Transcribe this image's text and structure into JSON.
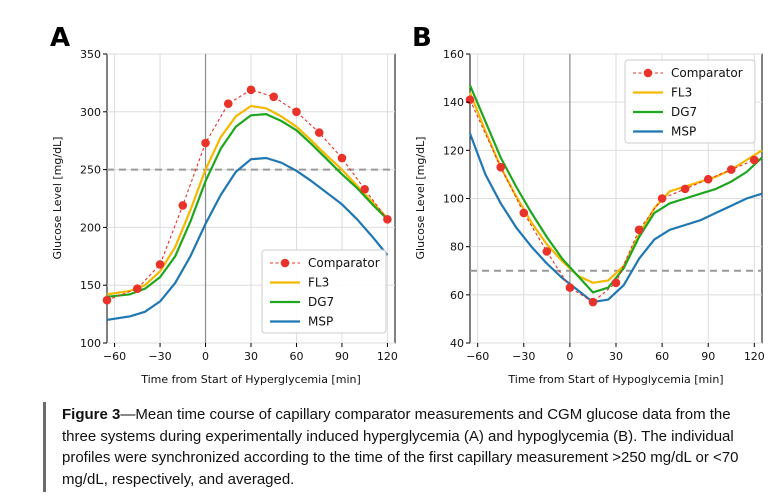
{
  "chart_data": [
    {
      "type": "line",
      "panel": "A",
      "xlabel": "Time from Start of Hyperglycemia [min]",
      "ylabel": "Glucose Level [mg/dL]",
      "xlim": [
        -65,
        125
      ],
      "ylim": [
        100,
        350
      ],
      "xticks": [
        -60,
        -30,
        0,
        30,
        60,
        90,
        120
      ],
      "yticks": [
        100,
        150,
        200,
        250,
        300,
        350
      ],
      "hline": 250,
      "vline": 0,
      "legend_position": "lower-right",
      "series": [
        {
          "name": "Comparator",
          "color": "#e8322a",
          "style": "dashed-dots",
          "x": [
            -65,
            -45,
            -30,
            -15,
            0,
            15,
            30,
            45,
            60,
            75,
            90,
            105,
            120
          ],
          "y": [
            137,
            147,
            168,
            219,
            273,
            307,
            319,
            313,
            300,
            282,
            260,
            233,
            207
          ]
        },
        {
          "name": "FL3",
          "color": "#f5b800",
          "style": "solid",
          "x": [
            -65,
            -50,
            -40,
            -30,
            -20,
            -10,
            0,
            10,
            20,
            30,
            40,
            50,
            60,
            70,
            80,
            90,
            100,
            110,
            120
          ],
          "y": [
            142,
            145,
            150,
            162,
            183,
            215,
            250,
            278,
            296,
            305,
            303,
            296,
            287,
            275,
            262,
            250,
            236,
            222,
            208
          ]
        },
        {
          "name": "DG7",
          "color": "#1fa61f",
          "style": "solid",
          "x": [
            -65,
            -50,
            -40,
            -30,
            -20,
            -10,
            0,
            10,
            20,
            30,
            40,
            50,
            60,
            70,
            80,
            90,
            100,
            110,
            120
          ],
          "y": [
            140,
            142,
            147,
            157,
            175,
            205,
            240,
            268,
            287,
            297,
            298,
            292,
            284,
            272,
            259,
            246,
            234,
            220,
            207
          ]
        },
        {
          "name": "MSP",
          "color": "#1f77b4",
          "style": "solid",
          "x": [
            -65,
            -50,
            -40,
            -30,
            -20,
            -10,
            0,
            10,
            20,
            30,
            40,
            50,
            60,
            70,
            80,
            90,
            100,
            110,
            120
          ],
          "y": [
            120,
            123,
            127,
            136,
            152,
            175,
            203,
            228,
            248,
            259,
            260,
            256,
            249,
            240,
            230,
            220,
            207,
            192,
            176
          ]
        }
      ]
    },
    {
      "type": "line",
      "panel": "B",
      "xlabel": "Time from Start of Hypoglycemia [min]",
      "ylabel": "Glucose Level [mg/dL]",
      "xlim": [
        -65,
        125
      ],
      "ylim": [
        40,
        160
      ],
      "xticks": [
        -60,
        -30,
        0,
        30,
        60,
        90,
        120
      ],
      "yticks": [
        40,
        60,
        80,
        100,
        120,
        140,
        160
      ],
      "hline": 70,
      "vline": 0,
      "legend_position": "top-right",
      "series": [
        {
          "name": "Comparator",
          "color": "#e8322a",
          "style": "dashed-dots",
          "x": [
            -65,
            -45,
            -30,
            -15,
            0,
            15,
            30,
            45,
            60,
            75,
            90,
            105,
            120
          ],
          "y": [
            141,
            113,
            94,
            78,
            63,
            57,
            65,
            87,
            100,
            104,
            108,
            112,
            116
          ]
        },
        {
          "name": "FL3",
          "color": "#f5b800",
          "style": "solid",
          "x": [
            -65,
            -55,
            -45,
            -35,
            -25,
            -15,
            -5,
            5,
            15,
            25,
            35,
            45,
            55,
            65,
            75,
            85,
            95,
            105,
            115,
            125
          ],
          "y": [
            144,
            128,
            113,
            101,
            90,
            81,
            74,
            68,
            65,
            66,
            72,
            85,
            96,
            103,
            105,
            107,
            109,
            112,
            116,
            120
          ]
        },
        {
          "name": "DG7",
          "color": "#1fa61f",
          "style": "solid",
          "x": [
            -65,
            -55,
            -45,
            -35,
            -25,
            -15,
            -5,
            5,
            15,
            25,
            35,
            45,
            55,
            65,
            75,
            85,
            95,
            105,
            115,
            125
          ],
          "y": [
            147,
            132,
            117,
            105,
            94,
            84,
            75,
            68,
            61,
            63,
            71,
            84,
            94,
            98,
            100,
            102,
            104,
            107,
            111,
            117
          ]
        },
        {
          "name": "MSP",
          "color": "#1f77b4",
          "style": "solid",
          "x": [
            -65,
            -55,
            -45,
            -35,
            -25,
            -15,
            -5,
            5,
            15,
            25,
            35,
            45,
            55,
            65,
            75,
            85,
            95,
            105,
            115,
            125
          ],
          "y": [
            127,
            110,
            98,
            88,
            80,
            73,
            67,
            62,
            57,
            58,
            64,
            75,
            83,
            87,
            89,
            91,
            94,
            97,
            100,
            102
          ]
        }
      ]
    }
  ],
  "caption": {
    "figure_label": "Figure 3",
    "text": "—Mean time course of capillary comparator measurements and CGM glucose data from the three systems during experimentally induced hyperglycemia (A) and hypoglycemia (B). The individual profiles were synchronized according to the time of the first capillary measurement >250 mg/dL or <70 mg/dL, respectively, and averaged."
  }
}
